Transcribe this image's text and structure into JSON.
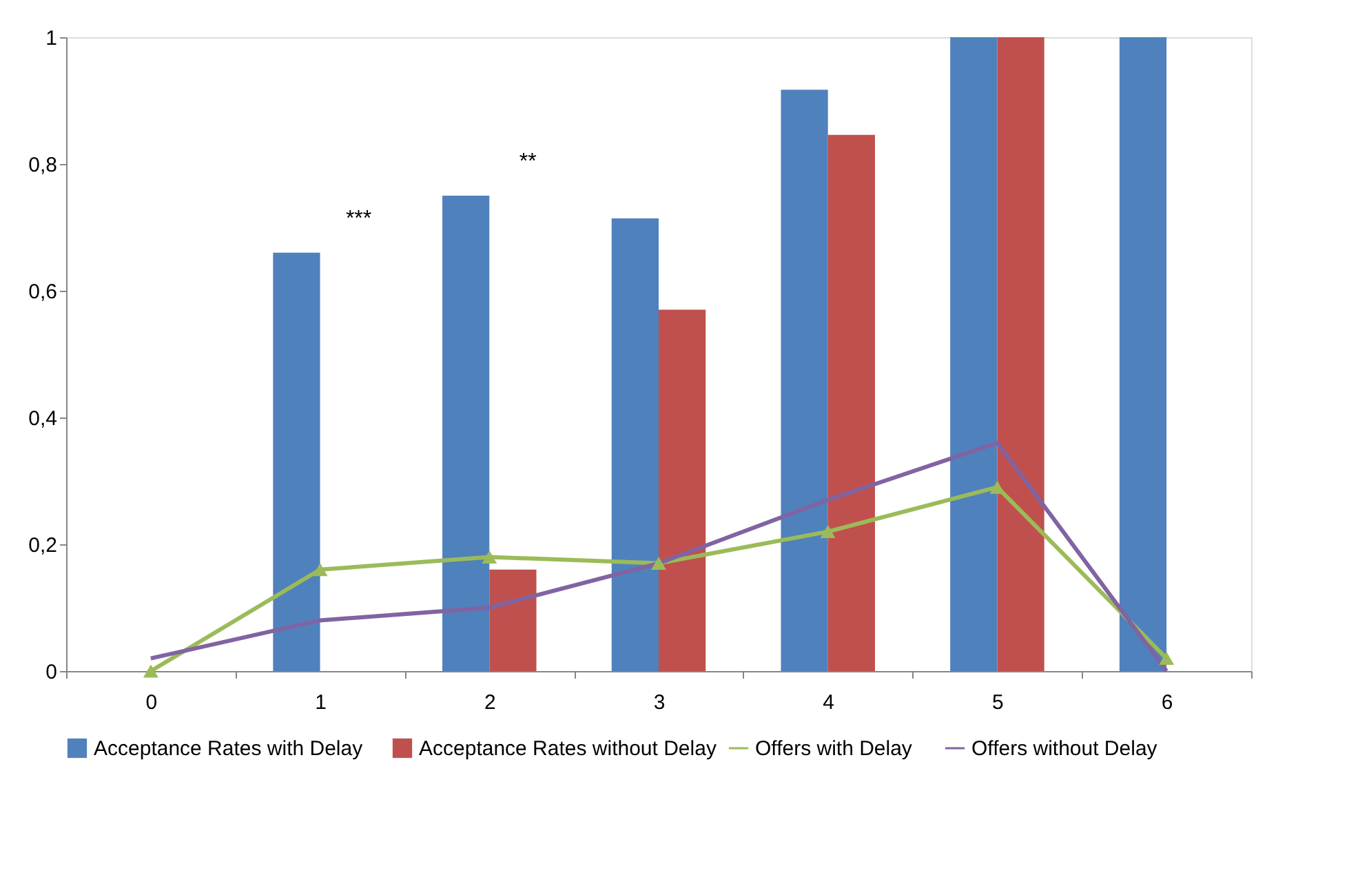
{
  "chart_data": {
    "type": "bar",
    "categories": [
      "0",
      "1",
      "2",
      "3",
      "4",
      "5",
      "6"
    ],
    "series": [
      {
        "name": "Acceptance Rates with Delay",
        "color": "#4f81bd",
        "values": [
          null,
          0.66,
          0.75,
          0.714,
          0.917,
          1,
          1
        ]
      },
      {
        "name": "Acceptance Rates without Delay",
        "color": "#c0504d",
        "values": [
          null,
          null,
          0.16,
          0.57,
          0.846,
          1,
          null
        ]
      },
      {
        "name": "Offers with Delay",
        "type": "line",
        "color": "#9bbb59",
        "marker": "triangle",
        "values": [
          0,
          0.16,
          0.18,
          0.17,
          0.22,
          0.29,
          0.02
        ]
      },
      {
        "name": "Offers without Delay",
        "type": "line",
        "color": "#8064a2",
        "marker": "none",
        "values": [
          0.02,
          0.08,
          0.1,
          0.17,
          0.27,
          0.36,
          0
        ]
      }
    ],
    "ylim": [
      0,
      1
    ],
    "yticks": [
      0,
      {
        "value": 0.2,
        "label": "0,2"
      },
      {
        "value": 0.4,
        "label": "0,4"
      },
      {
        "value": 0.6,
        "label": "0,6"
      },
      {
        "value": 0.8,
        "label": "0,8"
      },
      1
    ],
    "annotations": [
      {
        "text": "***",
        "x": "1",
        "y": 0.66
      },
      {
        "text": "**",
        "x": "2",
        "y": 0.75
      }
    ],
    "grid": false,
    "legend": "bottom"
  }
}
